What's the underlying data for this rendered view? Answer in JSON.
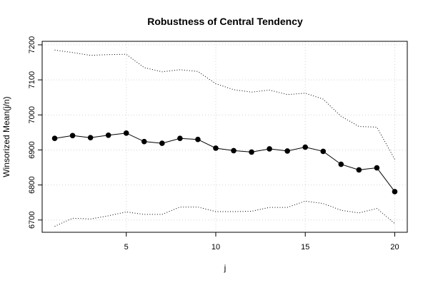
{
  "chart_data": {
    "type": "line",
    "title": "Robustness of Central Tendency",
    "xlabel": "j",
    "ylabel": "Winsorized Mean(j/n)",
    "xlim": [
      0.3,
      20.7
    ],
    "ylim": [
      6665,
      7210
    ],
    "x_ticks": [
      5,
      10,
      15,
      20
    ],
    "y_ticks": [
      6700,
      6800,
      6900,
      7000,
      7100,
      7200
    ],
    "grid": true,
    "x": [
      1,
      2,
      3,
      4,
      5,
      6,
      7,
      8,
      9,
      10,
      11,
      12,
      13,
      14,
      15,
      16,
      17,
      18,
      19,
      20
    ],
    "series": [
      {
        "style": "line-points",
        "values": [
          6933,
          6941,
          6935,
          6942,
          6948,
          6924,
          6919,
          6933,
          6930,
          6905,
          6898,
          6894,
          6903,
          6897,
          6908,
          6896,
          6859,
          6843,
          6849,
          6781
        ]
      },
      {
        "style": "dotted-upper",
        "values": [
          7185,
          7178,
          7170,
          7172,
          7173,
          7135,
          7123,
          7129,
          7124,
          7089,
          7072,
          7065,
          7071,
          7058,
          7062,
          7045,
          6996,
          6967,
          6965,
          6873
        ]
      },
      {
        "style": "dotted-lower",
        "values": [
          6682,
          6705,
          6703,
          6712,
          6723,
          6716,
          6716,
          6737,
          6737,
          6724,
          6724,
          6725,
          6736,
          6736,
          6754,
          6747,
          6728,
          6720,
          6733,
          6690
        ]
      }
    ],
    "colors": {
      "line": "#000000",
      "grid": "#d3d3d3",
      "background": "#ffffff"
    }
  }
}
